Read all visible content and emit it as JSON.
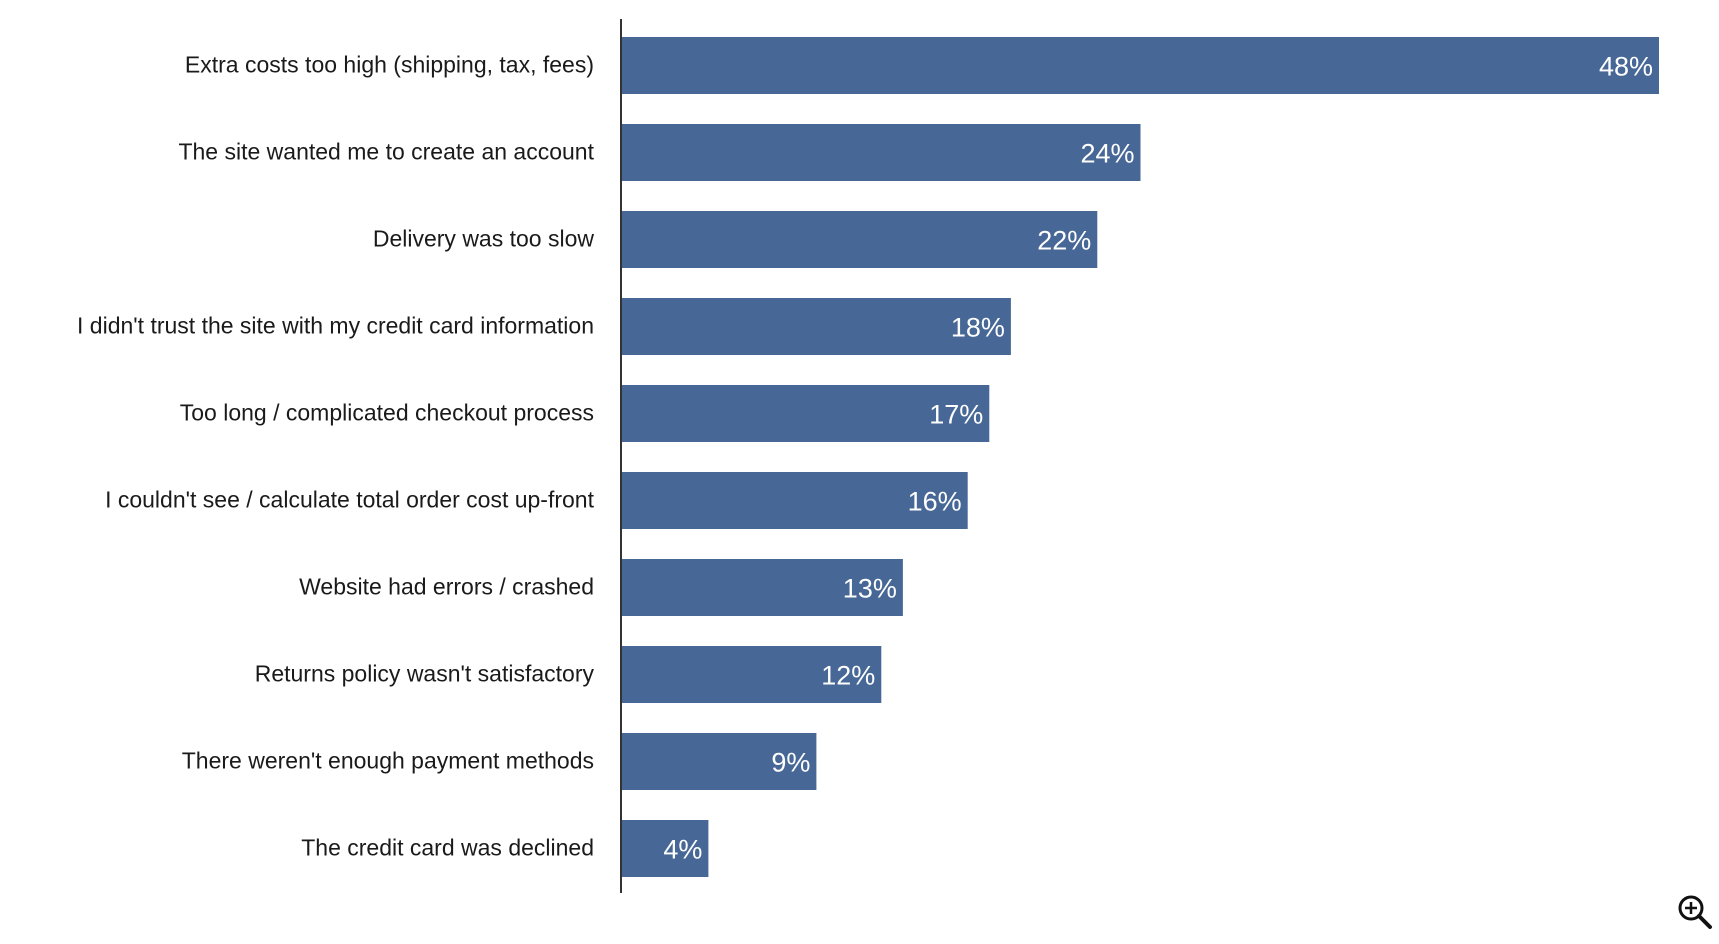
{
  "chart_data": {
    "type": "bar",
    "orientation": "horizontal",
    "categories": [
      "Extra costs too high (shipping, tax, fees)",
      "The site wanted me to create an account",
      "Delivery was too slow",
      "I didn't trust the site with my credit card information",
      "Too long / complicated checkout process",
      "I couldn't see / calculate total order cost up-front",
      "Website had errors / crashed",
      "Returns policy wasn't satisfactory",
      "There weren't enough payment methods",
      "The credit card was declined"
    ],
    "values": [
      48,
      24,
      22,
      18,
      17,
      16,
      13,
      12,
      9,
      4
    ],
    "value_labels": [
      "48%",
      "24%",
      "22%",
      "18%",
      "17%",
      "16%",
      "13%",
      "12%",
      "9%",
      "4%"
    ],
    "title": "",
    "xlabel": "",
    "ylabel": "",
    "xlim": [
      0,
      48
    ],
    "grid": false,
    "legend": "none",
    "bar_color": "#476896",
    "label_color": "#ffffff"
  },
  "controls": {
    "zoom_icon": "zoom-in-icon"
  }
}
